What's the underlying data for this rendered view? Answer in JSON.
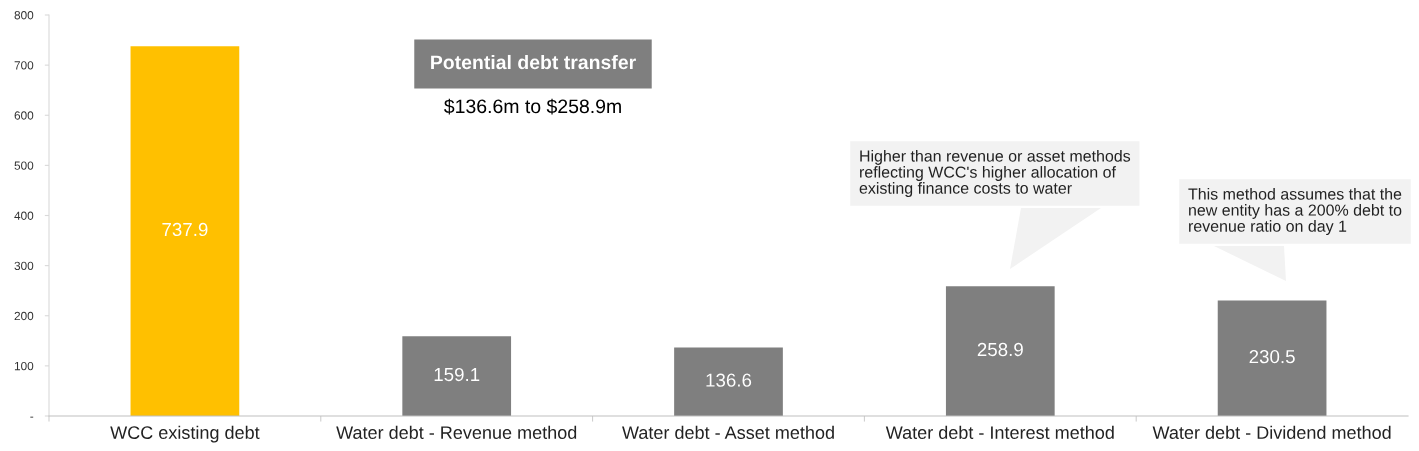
{
  "chart_data": {
    "type": "bar",
    "categories": [
      "WCC existing debt",
      "Water debt - Revenue method",
      "Water debt - Asset method",
      "Water debt - Interest method",
      "Water debt - Dividend method"
    ],
    "values": [
      737.9,
      159.1,
      136.6,
      258.9,
      230.5
    ],
    "colors": [
      "#ffc000",
      "#7f7f7f",
      "#7f7f7f",
      "#7f7f7f",
      "#7f7f7f"
    ],
    "ylim": [
      0,
      800
    ],
    "yticks": [
      {
        "value": 0,
        "label": "-"
      },
      100,
      200,
      300,
      400,
      500,
      600,
      700,
      800
    ],
    "data_labels": true,
    "grid": false,
    "legend": false,
    "annotations": [
      "Potential debt transfer",
      "$136.6m to $258.9m",
      "Higher than revenue or asset methods\nreflecting WCC's higher allocation of\nexisting finance costs to water",
      "This method assumes that the\nnew entity has a 200% debt to\nrevenue ratio on day 1"
    ]
  }
}
